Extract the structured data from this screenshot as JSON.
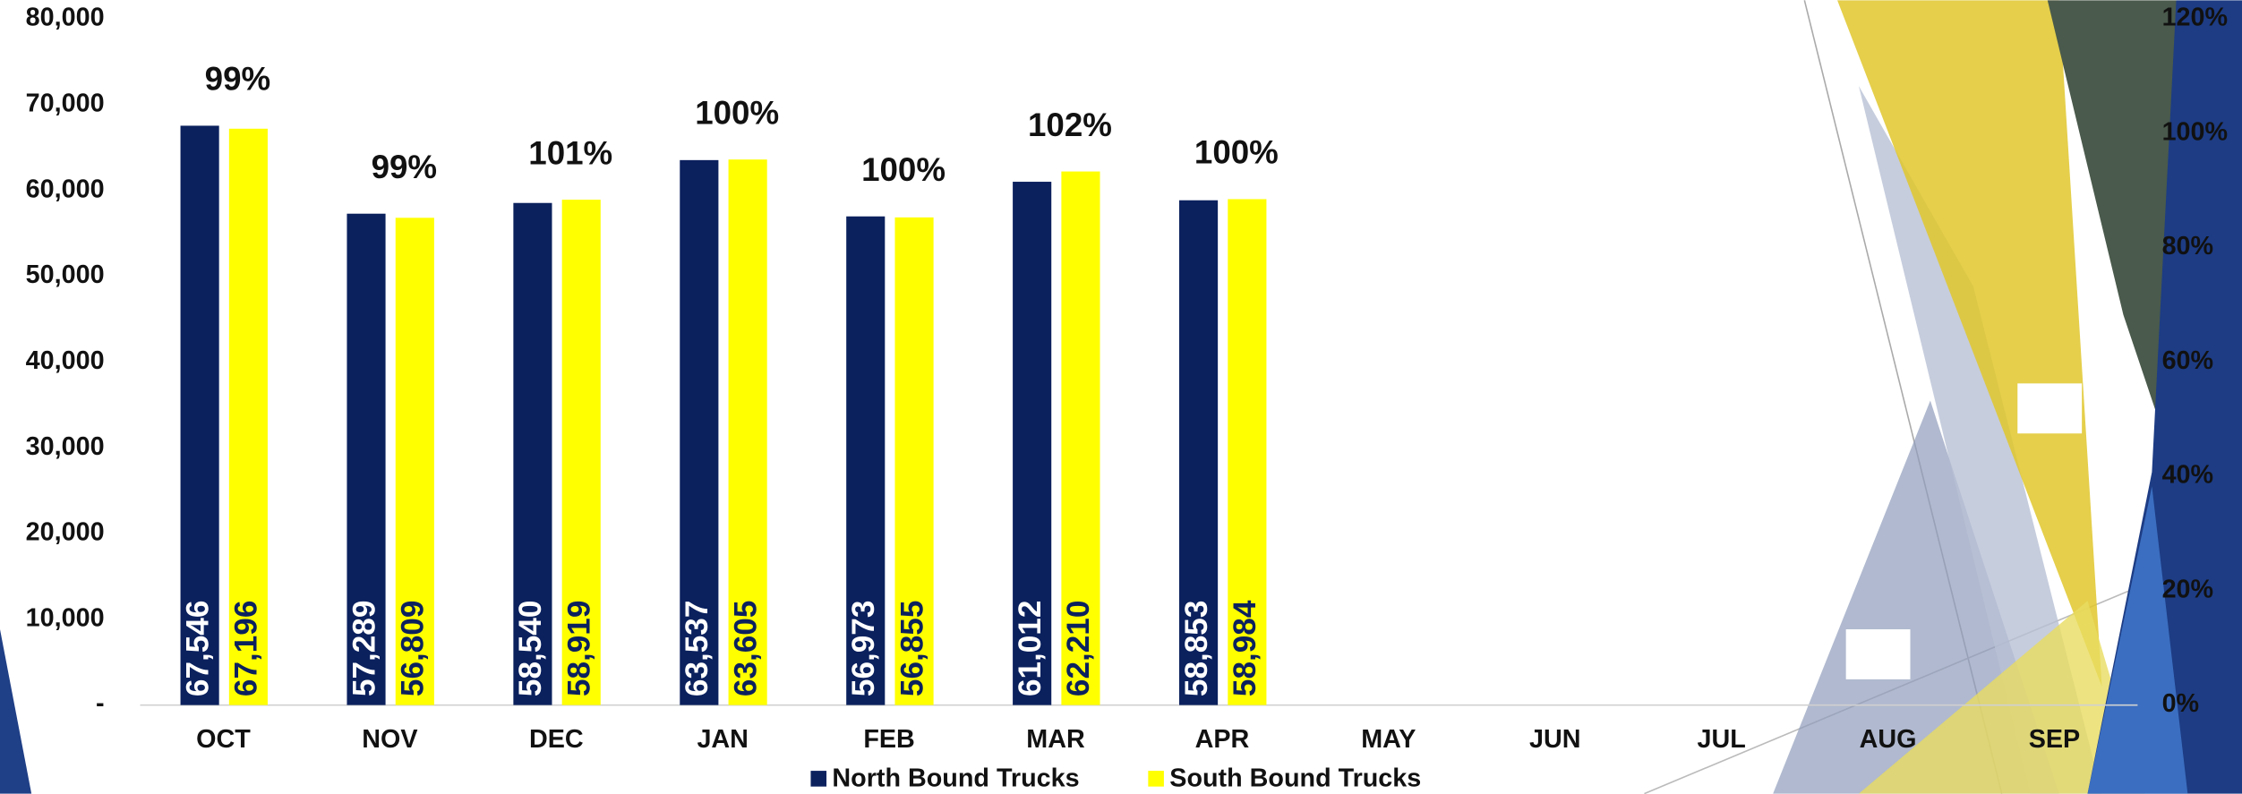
{
  "chart_data": {
    "type": "bar",
    "categories": [
      "OCT",
      "NOV",
      "DEC",
      "JAN",
      "FEB",
      "MAR",
      "APR",
      "MAY",
      "JUN",
      "JUL",
      "AUG",
      "SEP"
    ],
    "series": [
      {
        "name": "North Bound Trucks",
        "color": "#0b215e",
        "label_color": "#ffffff",
        "values": [
          67546,
          57289,
          58540,
          63537,
          56973,
          61012,
          58853,
          null,
          null,
          null,
          null,
          null
        ],
        "value_labels": [
          "67,546",
          "57,289",
          "58,540",
          "63,537",
          "56,973",
          "61,012",
          "58,853",
          null,
          null,
          null,
          null,
          null
        ]
      },
      {
        "name": "South Bound Trucks",
        "color": "#ffff00",
        "label_color": "#0b215e",
        "values": [
          67196,
          56809,
          58919,
          63605,
          56855,
          62210,
          58984,
          null,
          null,
          null,
          null,
          null
        ],
        "value_labels": [
          "67,196",
          "56,809",
          "58,919",
          "63,605",
          "56,855",
          "62,210",
          "58,984",
          null,
          null,
          null,
          null,
          null
        ]
      }
    ],
    "percent_labels": {
      "values": [
        99,
        99,
        101,
        100,
        100,
        102,
        100
      ],
      "value_labels": [
        "99%",
        "99%",
        "101%",
        "100%",
        "100%",
        "102%",
        "100%"
      ]
    },
    "ylim": [
      0,
      80000
    ],
    "yticks": [
      {
        "value": 0,
        "label": "-"
      },
      {
        "value": 10000,
        "label": "10,000"
      },
      {
        "value": 20000,
        "label": "20,000"
      },
      {
        "value": 30000,
        "label": "30,000"
      },
      {
        "value": 40000,
        "label": "40,000"
      },
      {
        "value": 50000,
        "label": "50,000"
      },
      {
        "value": 60000,
        "label": "60,000"
      },
      {
        "value": 70000,
        "label": "70,000"
      },
      {
        "value": 80000,
        "label": "80,000"
      }
    ],
    "y2lim": [
      0,
      120
    ],
    "y2ticks": [
      {
        "value": 0,
        "label": "0%"
      },
      {
        "value": 20,
        "label": "20%"
      },
      {
        "value": 40,
        "label": "40%"
      },
      {
        "value": 60,
        "label": "60%"
      },
      {
        "value": 80,
        "label": "80%"
      },
      {
        "value": 100,
        "label": "100%"
      },
      {
        "value": 120,
        "label": "120%"
      }
    ],
    "grid": false
  }
}
